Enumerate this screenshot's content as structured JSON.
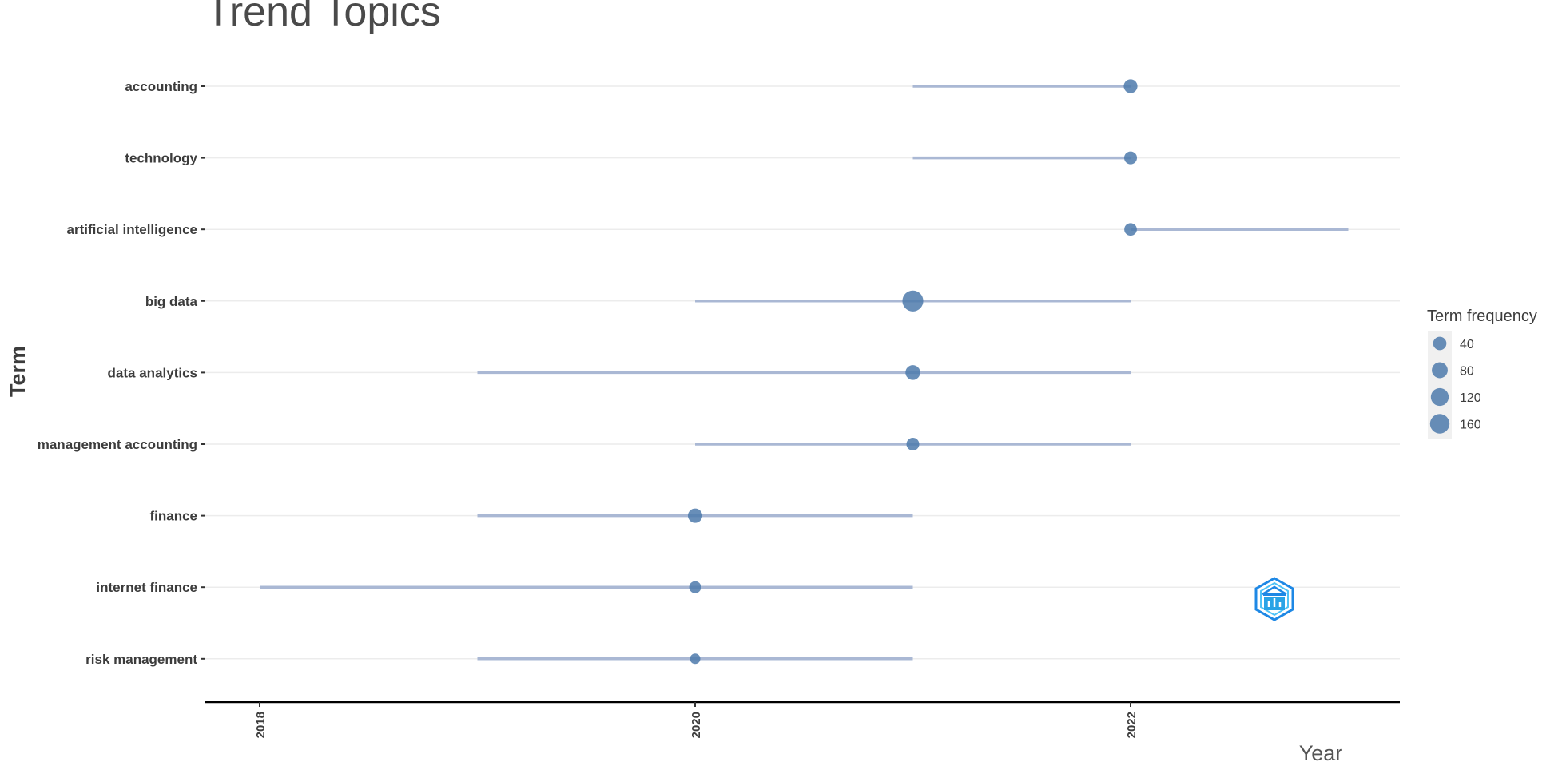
{
  "chart_data": {
    "type": "scatter",
    "title": "Trend Topics",
    "xlabel": "Year",
    "ylabel": "Term",
    "xlim": [
      2017.75,
      2023.25
    ],
    "x_ticks": [
      "2018",
      "2020",
      "2022"
    ],
    "x_tick_values": [
      2018,
      2020,
      2022
    ],
    "grid": "horizontal",
    "legend": {
      "title": "Term frequency",
      "placement": "right",
      "entries": [
        {
          "label": "40",
          "value": 40
        },
        {
          "label": "80",
          "value": 80
        },
        {
          "label": "120",
          "value": 120
        },
        {
          "label": "160",
          "value": 160
        }
      ]
    },
    "colors": {
      "point": "#4d7aab",
      "range_line": "#aab8d4",
      "grid": "#ececec",
      "axis": "#000000",
      "legend_bg": "#f0f0f0"
    },
    "terms": [
      {
        "term": "accounting",
        "year_q1": 2021,
        "year_median": 2022,
        "year_q3": 2022,
        "freq": 48
      },
      {
        "term": "technology",
        "year_q1": 2021,
        "year_median": 2022,
        "year_q3": 2022,
        "freq": 38
      },
      {
        "term": "artificial intelligence",
        "year_q1": 2022,
        "year_median": 2022,
        "year_q3": 2023,
        "freq": 36
      },
      {
        "term": "big data",
        "year_q1": 2020,
        "year_median": 2021,
        "year_q3": 2022,
        "freq": 160
      },
      {
        "term": "data analytics",
        "year_q1": 2019,
        "year_median": 2021,
        "year_q3": 2022,
        "freq": 60
      },
      {
        "term": "management accounting",
        "year_q1": 2020,
        "year_median": 2021,
        "year_q3": 2022,
        "freq": 38
      },
      {
        "term": "finance",
        "year_q1": 2019,
        "year_median": 2020,
        "year_q3": 2021,
        "freq": 56
      },
      {
        "term": "internet finance",
        "year_q1": 2018,
        "year_median": 2020,
        "year_q3": 2021,
        "freq": 30
      },
      {
        "term": "risk management",
        "year_q1": 2019,
        "year_median": 2020,
        "year_q3": 2021,
        "freq": 18
      }
    ]
  },
  "logo": {
    "name": "bibliometrix-logo",
    "colors": [
      "#1e88e5",
      "#4fc3f7"
    ]
  }
}
